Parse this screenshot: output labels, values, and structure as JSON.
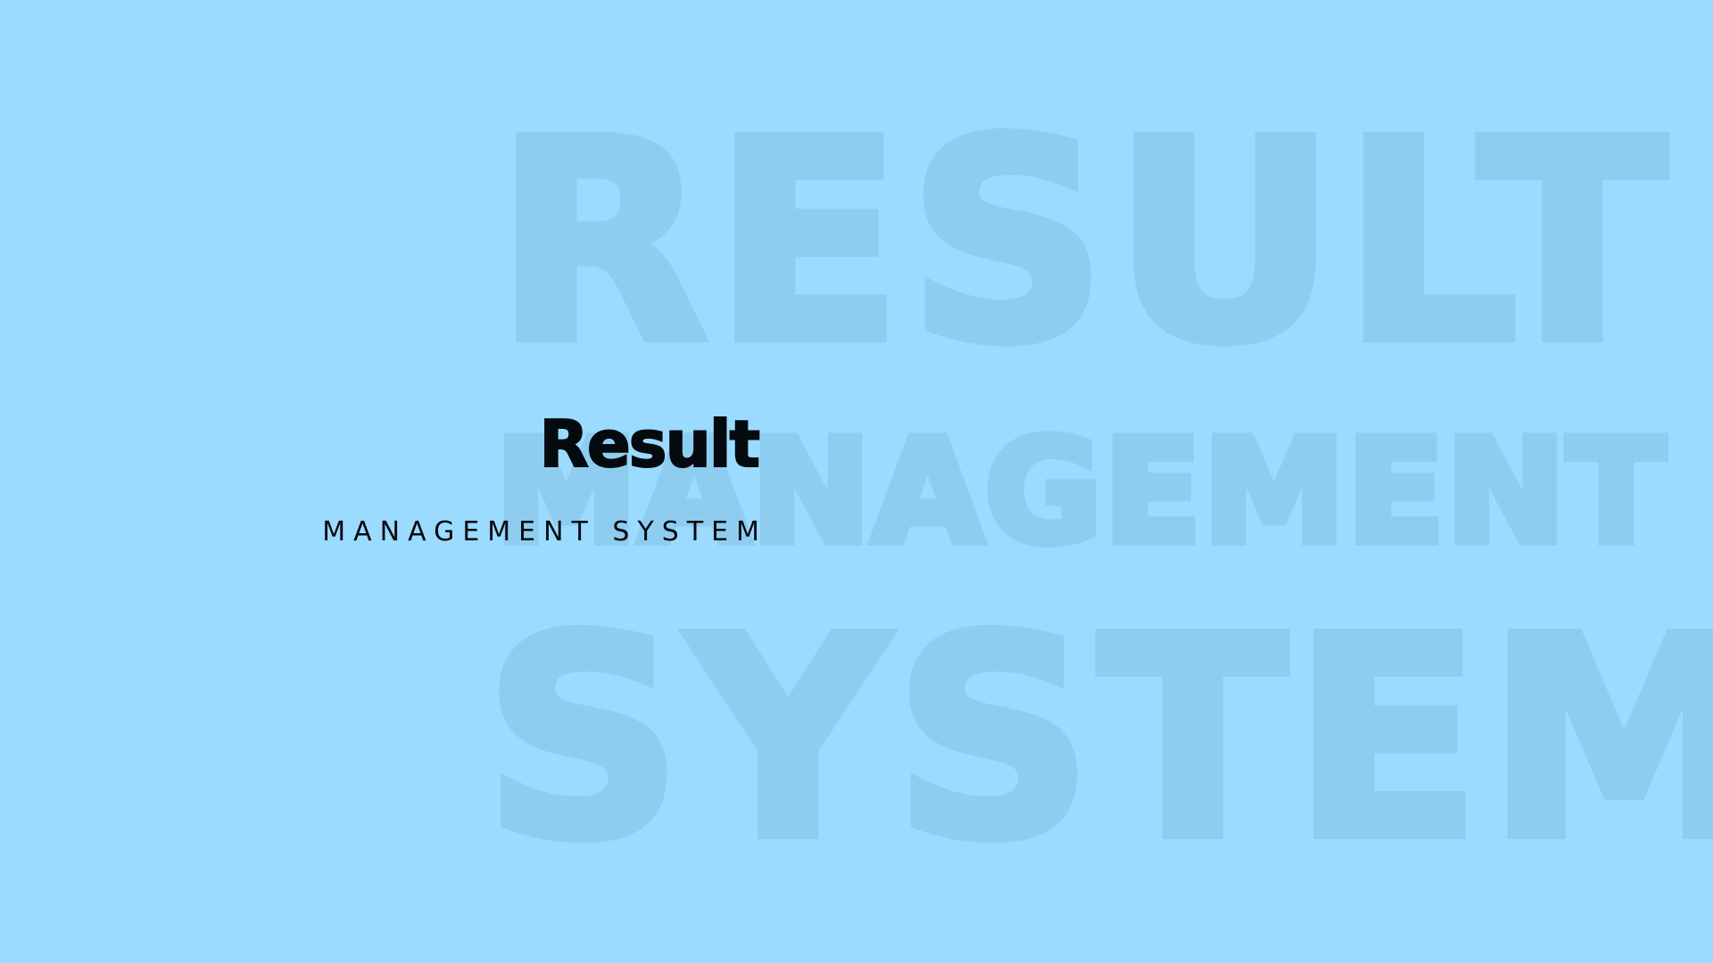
{
  "colors": {
    "background": "#9bdbff",
    "watermark": "#8fcdf0",
    "foreground": "#050a0f"
  },
  "watermark": {
    "line1": "RESULT",
    "line2": "MANAGEMENT",
    "line3": "SYSTEM"
  },
  "logo": {
    "title": "Result",
    "subtitle": "MANAGEMENT SYSTEM"
  }
}
